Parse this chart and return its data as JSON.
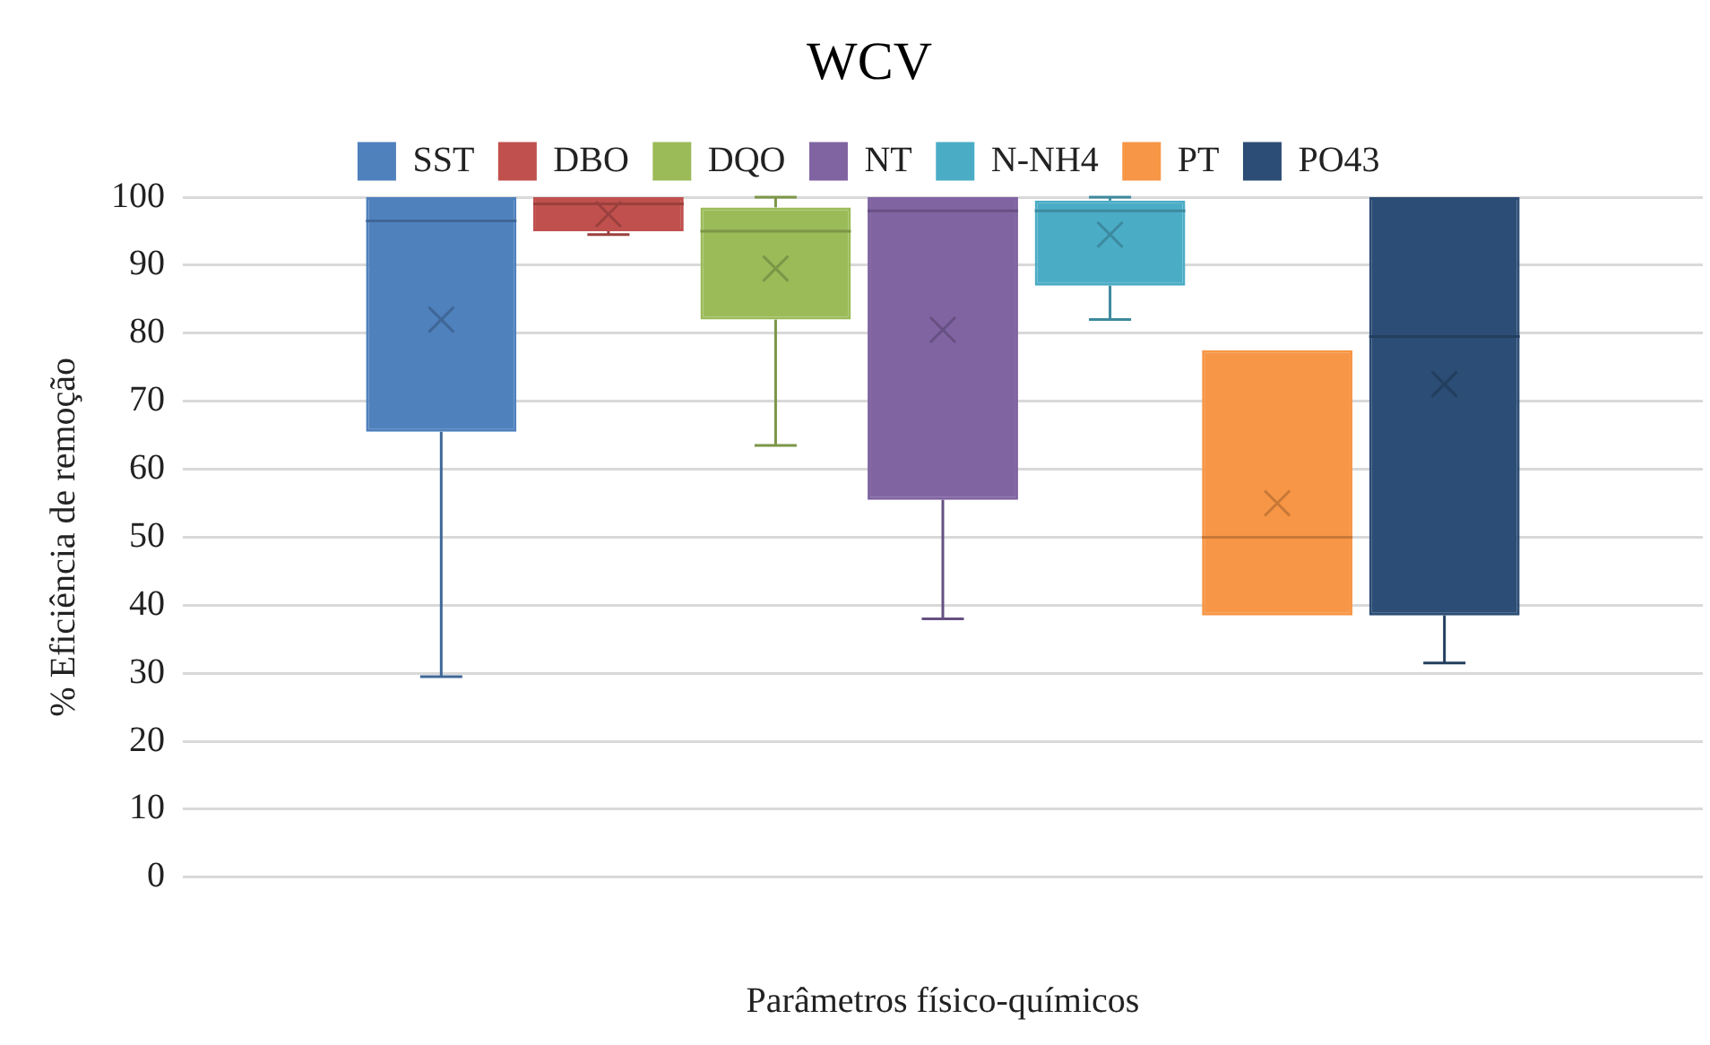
{
  "chart_data": {
    "type": "box",
    "title": "WCV",
    "xlabel": "Parâmetros físico-químicos",
    "ylabel": "% Eficiência de remoção",
    "categories": [
      null
    ],
    "ylim": [
      0,
      100
    ],
    "yticks": [
      0,
      10,
      20,
      30,
      40,
      50,
      60,
      70,
      80,
      90,
      100
    ],
    "grid": "y",
    "legend": "top",
    "series": [
      {
        "name": "SST",
        "color": "#4f81bd",
        "boxes": [
          {
            "low": 29.5,
            "q1": 65.5,
            "median": 96.5,
            "q3": 100,
            "high": 100,
            "mean": 82
          }
        ]
      },
      {
        "name": "DBO",
        "color": "#c0504d",
        "boxes": [
          {
            "low": 94.5,
            "q1": 95,
            "median": 99,
            "q3": 100,
            "high": 100,
            "mean": 97.5
          }
        ]
      },
      {
        "name": "DQO",
        "color": "#9bbb59",
        "boxes": [
          {
            "low": 63.5,
            "q1": 82,
            "median": 95,
            "q3": 98.5,
            "high": 100,
            "mean": 89.5
          }
        ]
      },
      {
        "name": "NT",
        "color": "#8064a2",
        "boxes": [
          {
            "low": 38,
            "q1": 55.5,
            "median": 98,
            "q3": 100,
            "high": 100,
            "mean": 80.5
          }
        ]
      },
      {
        "name": "N-NH4",
        "color": "#4bacc6",
        "boxes": [
          {
            "low": 82,
            "q1": 87,
            "median": 98,
            "q3": 99.5,
            "high": 100,
            "mean": 94.5
          }
        ]
      },
      {
        "name": "PT",
        "color": "#f79646",
        "boxes": [
          {
            "low": 38.5,
            "q1": 38.5,
            "median": 50,
            "q3": 77.5,
            "high": 77.5,
            "mean": 55
          }
        ]
      },
      {
        "name": "PO43",
        "color": "#2c4d75",
        "boxes": [
          {
            "low": 31.5,
            "q1": 38.5,
            "median": 79.5,
            "q3": 100,
            "high": 100,
            "mean": 72.5
          }
        ]
      }
    ]
  }
}
